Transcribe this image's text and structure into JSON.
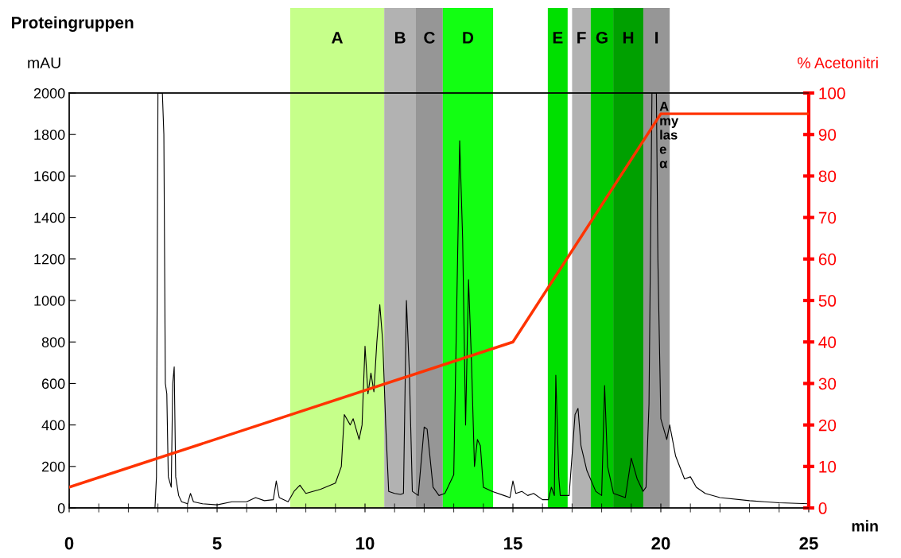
{
  "chart_data": {
    "type": "line",
    "title": "Proteingruppen",
    "xlabel": "min",
    "ylabel": "mAU",
    "y2label": "% Acetonitri",
    "xlim": [
      0,
      25
    ],
    "xticks": [
      0,
      5,
      10,
      15,
      20,
      25
    ],
    "ylim": [
      0,
      2000
    ],
    "yticks": [
      0,
      200,
      400,
      600,
      800,
      1000,
      1200,
      1400,
      1600,
      1800,
      2000
    ],
    "y2lim": [
      0,
      100
    ],
    "y2ticks": [
      0,
      10,
      20,
      30,
      40,
      50,
      60,
      70,
      80,
      90,
      100
    ],
    "grid": false,
    "legend": false,
    "marker": "none",
    "line_style": "solid",
    "series": [
      {
        "color": "#000000",
        "x": [
          0,
          2.9,
          2.95,
          3.0,
          3.1,
          3.15,
          3.2,
          3.25,
          3.3,
          3.35,
          3.45,
          3.5,
          3.55,
          3.6,
          3.7,
          3.8,
          4.0,
          4.1,
          4.2,
          4.5,
          5,
          5.5,
          6.0,
          6.3,
          6.6,
          6.9,
          7.0,
          7.1,
          7.4,
          7.6,
          7.8,
          8.0,
          8.5,
          9.0,
          9.2,
          9.3,
          9.5,
          9.6,
          9.8,
          9.9,
          10.0,
          10.1,
          10.2,
          10.3,
          10.4,
          10.5,
          10.6,
          10.7,
          10.8,
          11.0,
          11.2,
          11.3,
          11.4,
          11.5,
          11.6,
          11.8,
          12.0,
          12.1,
          12.3,
          12.5,
          12.7,
          13.0,
          13.2,
          13.3,
          13.4,
          13.5,
          13.6,
          13.7,
          13.8,
          13.9,
          14.0,
          14.3,
          14.7,
          14.9,
          15.0,
          15.1,
          15.3,
          15.5,
          15.7,
          16.0,
          16.2,
          16.3,
          16.4,
          16.45,
          16.55,
          16.6,
          16.9,
          17.1,
          17.2,
          17.3,
          17.5,
          17.8,
          18.0,
          18.1,
          18.2,
          18.4,
          18.8,
          19.0,
          19.2,
          19.4,
          19.5,
          19.6,
          19.7,
          19.85,
          19.9,
          20.0,
          20.2,
          20.3,
          20.5,
          20.8,
          21.0,
          21.2,
          21.5,
          22,
          23,
          23.5,
          24,
          25
        ],
        "values": [
          0,
          0,
          150,
          2000,
          2000,
          2000,
          1800,
          600,
          550,
          150,
          100,
          600,
          680,
          150,
          60,
          30,
          20,
          70,
          30,
          20,
          15,
          30,
          30,
          50,
          35,
          40,
          130,
          50,
          30,
          80,
          110,
          70,
          90,
          120,
          200,
          450,
          400,
          430,
          330,
          400,
          780,
          550,
          650,
          560,
          800,
          980,
          800,
          400,
          80,
          70,
          65,
          70,
          1000,
          650,
          80,
          60,
          390,
          380,
          100,
          60,
          70,
          160,
          1770,
          1300,
          400,
          1100,
          700,
          200,
          330,
          300,
          100,
          80,
          60,
          50,
          130,
          70,
          80,
          60,
          70,
          40,
          40,
          100,
          60,
          640,
          150,
          60,
          60,
          450,
          480,
          300,
          180,
          80,
          60,
          590,
          200,
          70,
          50,
          240,
          140,
          80,
          100,
          500,
          2000,
          2000,
          1200,
          430,
          330,
          400,
          250,
          140,
          150,
          100,
          70,
          50,
          35,
          30,
          25,
          20
        ]
      },
      {
        "color": "#ff3300",
        "axis": "y2",
        "x": [
          0,
          15,
          20,
          25
        ],
        "values": [
          5,
          40,
          95,
          95
        ]
      }
    ],
    "bands": [
      {
        "axis": "x",
        "from": 7.47,
        "to": 10.65,
        "label": "A",
        "color": "#c6ff8a"
      },
      {
        "axis": "x",
        "from": 10.65,
        "to": 11.72,
        "label": "B",
        "color": "#b2b2b2"
      },
      {
        "axis": "x",
        "from": 11.72,
        "to": 12.63,
        "label": "C",
        "color": "#969696"
      },
      {
        "axis": "x",
        "from": 12.63,
        "to": 14.33,
        "label": "D",
        "color": "#12ff12"
      },
      {
        "axis": "x",
        "from": 16.18,
        "to": 16.85,
        "label": "E",
        "color": "#00e000"
      },
      {
        "axis": "x",
        "from": 17.0,
        "to": 17.63,
        "label": "F",
        "color": "#b2b2b2"
      },
      {
        "axis": "x",
        "from": 17.63,
        "to": 18.39,
        "label": "G",
        "color": "#00c800"
      },
      {
        "axis": "x",
        "from": 18.39,
        "to": 19.41,
        "label": "H",
        "color": "#00a000"
      },
      {
        "axis": "x",
        "from": 19.41,
        "to": 20.3,
        "label": "I",
        "color": "#969696"
      }
    ],
    "annotations": [
      {
        "text": "A\nmy\nlas\ne\nα",
        "x": 19.95,
        "y": 1960
      }
    ]
  }
}
